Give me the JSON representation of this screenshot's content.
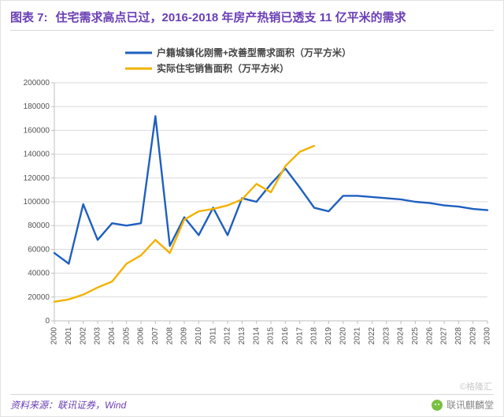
{
  "header": {
    "fig_label": "图表 7:",
    "title": "住宅需求高点已过，2016-2018 年房产热销已透支 11 亿平米的需求"
  },
  "chart": {
    "type": "line",
    "background_color": "#ffffff",
    "grid_color": "#d9d9d9",
    "axis_color": "#bfbfbf",
    "years": [
      2000,
      2001,
      2002,
      2003,
      2004,
      2005,
      2006,
      2007,
      2008,
      2009,
      2010,
      2011,
      2012,
      2013,
      2014,
      2015,
      2016,
      2017,
      2018,
      2019,
      2020,
      2021,
      2022,
      2023,
      2024,
      2025,
      2026,
      2027,
      2028,
      2029,
      2030
    ],
    "ylim": [
      0,
      200000
    ],
    "ytick_step": 20000,
    "x_label_rotation": -90,
    "tick_fontsize": 10,
    "legend_fontsize": 12,
    "line_width": 2.4,
    "series": [
      {
        "key": "demand",
        "label": "户籍城镇化刚需+改善型需求面积（万平方米）",
        "color": "#1f5fbf",
        "values": [
          57000,
          48000,
          98000,
          68000,
          82000,
          80000,
          82000,
          172000,
          63000,
          87000,
          72000,
          95000,
          72000,
          103000,
          100000,
          115000,
          128000,
          112000,
          95000,
          92000,
          105000,
          105000,
          104000,
          103000,
          102000,
          100000,
          99000,
          97000,
          96000,
          94000,
          93000
        ]
      },
      {
        "key": "sales",
        "label": "实际住宅销售面积（万平方米）",
        "color": "#f2b200",
        "values": [
          16000,
          18000,
          22000,
          28000,
          33000,
          48000,
          55000,
          68000,
          57000,
          85000,
          92000,
          94000,
          97000,
          102000,
          115000,
          108000,
          130000,
          142000,
          147000
        ]
      }
    ]
  },
  "source": {
    "label": "资料来源：",
    "text": "联讯证券，Wind"
  },
  "brand": "联讯麒麟堂",
  "watermark": "©格隆汇"
}
